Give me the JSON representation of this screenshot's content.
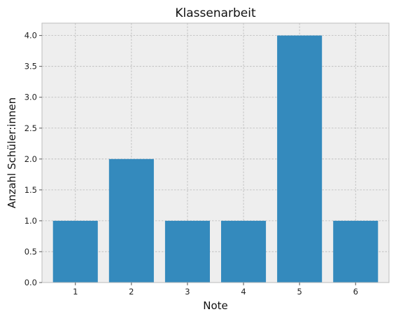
{
  "chart_data": {
    "type": "bar",
    "title": "Klassenarbeit",
    "xlabel": "Note",
    "ylabel": "Anzahl Schüler:innen",
    "categories": [
      "1",
      "2",
      "3",
      "4",
      "5",
      "6"
    ],
    "values": [
      1,
      2,
      1,
      1,
      4,
      1
    ],
    "ylim": [
      0,
      4.2
    ],
    "yticks": [
      "0.0",
      "0.5",
      "1.0",
      "1.5",
      "2.0",
      "2.5",
      "3.0",
      "3.5",
      "4.0"
    ],
    "grid": true,
    "colors": {
      "bar": "#348abd",
      "plot_background": "#eeeeee",
      "frame": "#bcbcbc"
    }
  }
}
